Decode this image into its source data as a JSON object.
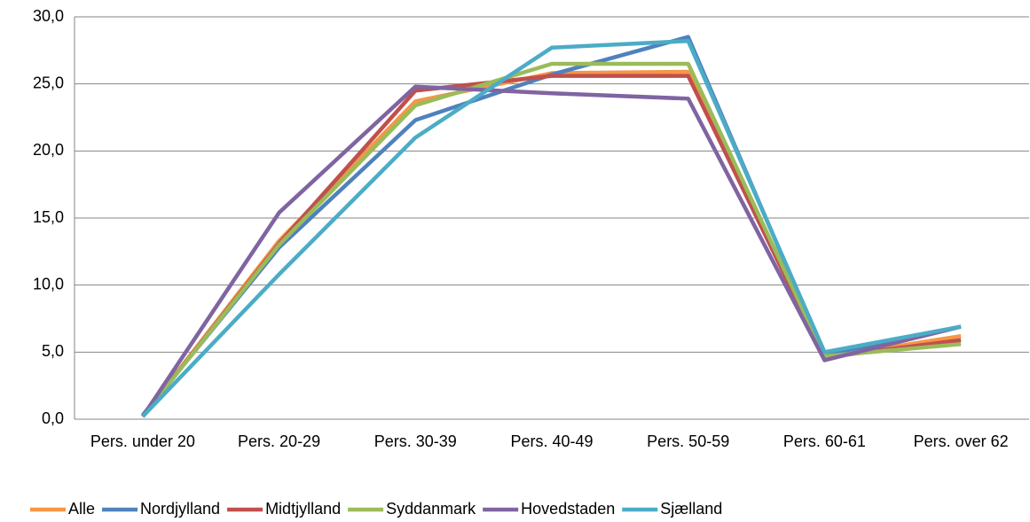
{
  "chart_data": {
    "type": "line",
    "categories": [
      "Pers. under 20",
      "Pers. 20-29",
      "Pers. 30-39",
      "Pers. 40-49",
      "Pers. 50-59",
      "Pers. 60-61",
      "Pers. over 62"
    ],
    "series": [
      {
        "name": "Alle",
        "color": "#f79646",
        "values": [
          0.2,
          13.3,
          23.7,
          25.8,
          25.9,
          4.6,
          6.2
        ]
      },
      {
        "name": "Nordjylland",
        "color": "#4f81bd",
        "values": [
          0.3,
          12.8,
          22.3,
          25.7,
          28.5,
          4.8,
          6.9
        ]
      },
      {
        "name": "Midtjylland",
        "color": "#c0504d",
        "values": [
          0.2,
          13.1,
          24.5,
          25.6,
          25.6,
          4.6,
          5.9
        ]
      },
      {
        "name": "Syddanmark",
        "color": "#9bbb59",
        "values": [
          0.2,
          13.0,
          23.4,
          26.5,
          26.5,
          4.7,
          5.6
        ]
      },
      {
        "name": "Hovedstaden",
        "color": "#8064a2",
        "values": [
          0.2,
          15.4,
          24.8,
          24.3,
          23.9,
          4.4,
          6.9
        ]
      },
      {
        "name": "Sjælland",
        "color": "#4bacc6",
        "values": [
          0.2,
          10.8,
          21.0,
          27.7,
          28.2,
          5.0,
          6.9
        ]
      }
    ],
    "ylim": [
      0,
      30
    ],
    "yticks": [
      {
        "value": 0,
        "label": "0,0"
      },
      {
        "value": 5,
        "label": "5,0"
      },
      {
        "value": 10,
        "label": "10,0"
      },
      {
        "value": 15,
        "label": "15,0"
      },
      {
        "value": 20,
        "label": "20,0"
      },
      {
        "value": 25,
        "label": "25,0"
      },
      {
        "value": 30,
        "label": "30,0"
      }
    ],
    "grid": true,
    "legend": "bottom"
  }
}
